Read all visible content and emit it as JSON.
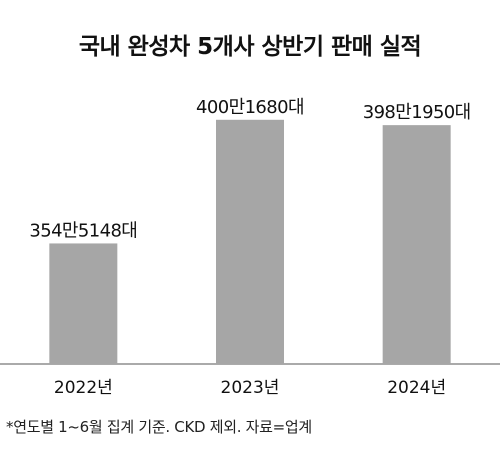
{
  "title": "국내 완성차 5개사 상반기 판매 실적",
  "footnote": "*연도별 1~6월 집계 기준. CKD 제외. 자료=업계",
  "colors": {
    "bar": "#a6a6a6",
    "axis": "#555555",
    "text": "#111111"
  },
  "chart_data": {
    "type": "bar",
    "title": "국내 완성차 5개사 상반기 판매 실적",
    "categories": [
      "2022년",
      "2023년",
      "2024년"
    ],
    "values": [
      3545148,
      4001680,
      3981950
    ],
    "value_labels": [
      "354만5148대",
      "400만1680대",
      "398만1950대"
    ],
    "xlabel": "",
    "ylabel": "",
    "ylim": [
      3100000,
      4060000
    ],
    "grid": false,
    "legend": "none"
  }
}
